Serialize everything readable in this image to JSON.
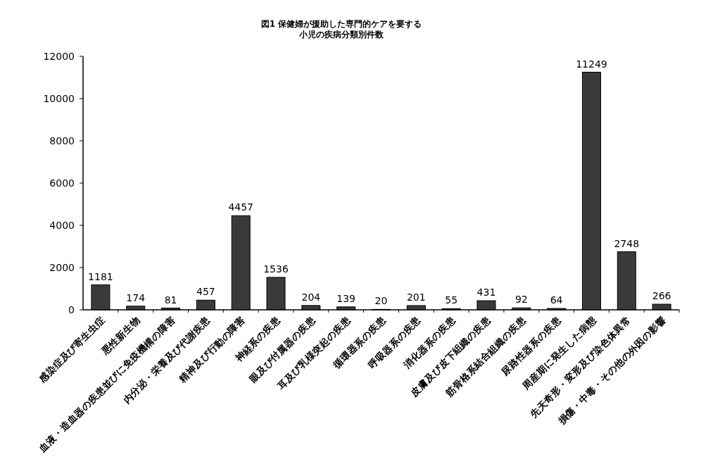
{
  "chart_data": {
    "type": "bar",
    "title": "図1 保健婦が援助した専門的ケアを要する",
    "subtitle": "小児の疾病分類別件数",
    "categories": [
      "感染症及び寄生虫症",
      "悪性新生物",
      "血液・造血器の疾患並びに免疫機構の障害",
      "内分泌・栄養及び代謝疾患",
      "精神及び行動の障害",
      "神経系の疾患",
      "眼及び付属器の疾患",
      "耳及び乳様突起の疾患",
      "循環器系の疾患",
      "呼吸器系の疾患",
      "消化器系の疾患",
      "皮膚及び皮下組織の疾患",
      "筋骨格系結合組織の疾患",
      "尿路性器系の疾患",
      "周産期に発生した病態",
      "先天奇形・変形及び染色体異常",
      "損傷・中毒・その他の外因の影響"
    ],
    "values": [
      1181,
      174,
      81,
      457,
      4457,
      1536,
      204,
      139,
      20,
      201,
      55,
      431,
      92,
      64,
      11249,
      2748,
      266
    ],
    "color": "#3a3a3a",
    "ylim": [
      0,
      12000
    ],
    "yticks": [
      0,
      2000,
      4000,
      6000,
      8000,
      10000,
      12000
    ],
    "data_labels": true,
    "grid": false
  }
}
